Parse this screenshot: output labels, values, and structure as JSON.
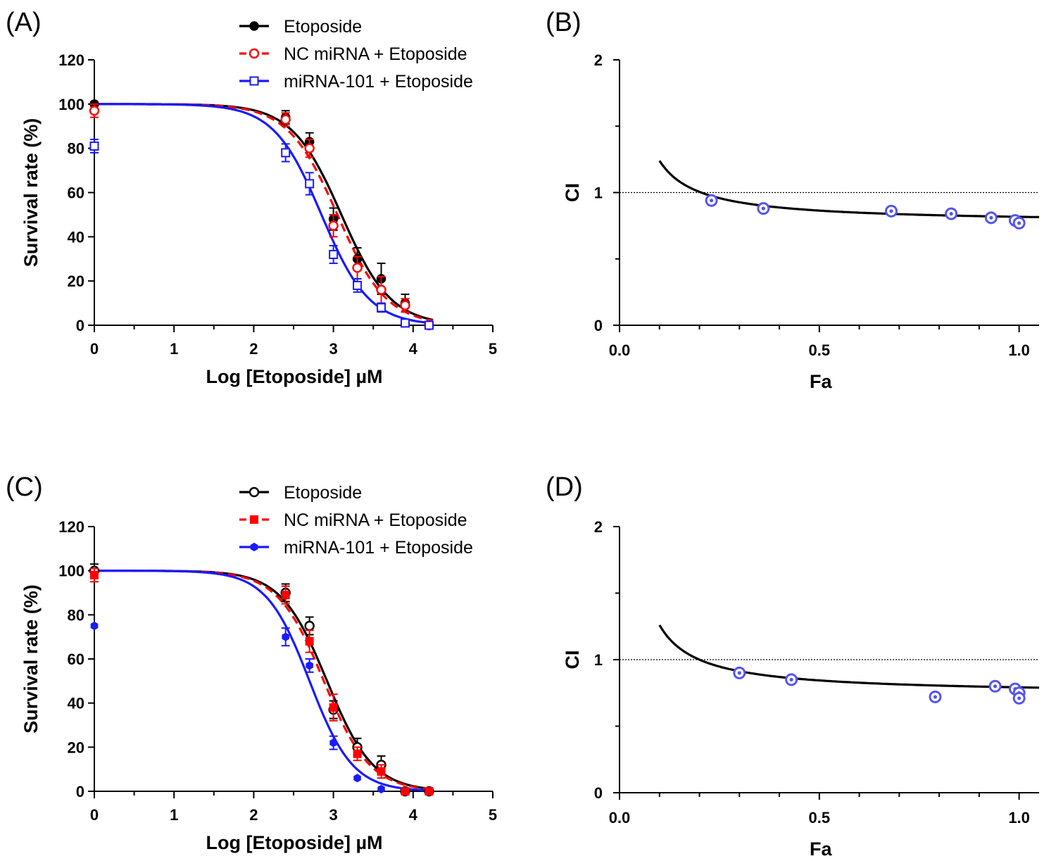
{
  "colors": {
    "black": "#000000",
    "red": "#ff0000",
    "blue": "#1a1aff",
    "ci_marker": "#5555ee"
  },
  "chart_data": [
    {
      "panel": "(A)",
      "type": "line",
      "xlabel": "Log [Etoposide] µM",
      "ylabel": "Survival rate (%)",
      "xlim": [
        0,
        5
      ],
      "ylim": [
        0,
        120
      ],
      "xticks": [
        "0",
        "1",
        "2",
        "3",
        "4",
        "5"
      ],
      "yticks": [
        "0",
        "20",
        "40",
        "60",
        "80",
        "100",
        "120"
      ],
      "legend_position": "top-center",
      "series": [
        {
          "name": "Etoposide",
          "color": "#000000",
          "dash": "solid",
          "marker": "filled-circle",
          "x": [
            0,
            2.4,
            2.7,
            3.0,
            3.3,
            3.6,
            3.9,
            4.2
          ],
          "y": [
            100,
            94,
            83,
            48,
            30,
            21,
            10,
            0
          ],
          "err": [
            0,
            3,
            4,
            5,
            5,
            7,
            4,
            0
          ],
          "fit": {
            "logIC50": 3.1,
            "hill": 1.4
          }
        },
        {
          "name": "NC miRNA + Etoposide",
          "color": "#ff0000",
          "dash": "dashed",
          "marker": "open-circle",
          "x": [
            0,
            2.4,
            2.7,
            3.0,
            3.3,
            3.6,
            3.9,
            4.2
          ],
          "y": [
            97,
            93,
            80,
            45,
            26,
            16,
            9,
            0
          ],
          "err": [
            3,
            3,
            4,
            5,
            5,
            6,
            3,
            0
          ],
          "fit": {
            "logIC50": 3.05,
            "hill": 1.4
          }
        },
        {
          "name": "miRNA-101 + Etoposide",
          "color": "#1a1aff",
          "dash": "solid",
          "marker": "open-square",
          "x": [
            0,
            2.4,
            2.7,
            3.0,
            3.3,
            3.6,
            3.9,
            4.2
          ],
          "y": [
            81,
            78,
            64,
            32,
            18,
            8,
            1,
            0
          ],
          "err": [
            3,
            4,
            5,
            4,
            3,
            2,
            1,
            0
          ],
          "fit": {
            "logIC50": 2.85,
            "hill": 1.45
          }
        }
      ]
    },
    {
      "panel": "(B)",
      "type": "scatter",
      "xlabel": "Fa",
      "ylabel": "CI",
      "xlim": [
        0,
        1.05
      ],
      "ylim": [
        0,
        2
      ],
      "xticks": [
        "0.0",
        "0.5",
        "1.0"
      ],
      "yticks": [
        "0",
        "1",
        "2"
      ],
      "reference_line_y": 1,
      "points": {
        "x": [
          0.23,
          0.36,
          0.68,
          0.83,
          0.93,
          0.99,
          1.0
        ],
        "y": [
          0.94,
          0.88,
          0.86,
          0.84,
          0.81,
          0.79,
          0.77
        ]
      },
      "curve": {
        "a": 0.77,
        "b": 0.047,
        "fa_from": 0.1,
        "fa_to": 1.05
      }
    },
    {
      "panel": "(C)",
      "type": "line",
      "xlabel": "Log [Etoposide] µM",
      "ylabel": "Survival rate (%)",
      "xlim": [
        0,
        5
      ],
      "ylim": [
        0,
        120
      ],
      "xticks": [
        "0",
        "1",
        "2",
        "3",
        "4",
        "5"
      ],
      "yticks": [
        "0",
        "20",
        "40",
        "60",
        "80",
        "100",
        "120"
      ],
      "legend_position": "top-center",
      "series": [
        {
          "name": "Etoposide",
          "color": "#000000",
          "dash": "solid",
          "marker": "open-circle",
          "x": [
            0,
            2.4,
            2.7,
            3.0,
            3.3,
            3.6,
            3.9,
            4.2
          ],
          "y": [
            100,
            90,
            75,
            37,
            20,
            12,
            0,
            0
          ],
          "err": [
            3,
            4,
            4,
            4,
            4,
            4,
            0,
            0
          ],
          "fit": {
            "logIC50": 2.92,
            "hill": 1.5
          }
        },
        {
          "name": "NC miRNA + Etoposide",
          "color": "#ff0000",
          "dash": "dashed",
          "marker": "filled-square",
          "x": [
            0,
            2.4,
            2.7,
            3.0,
            3.3,
            3.6,
            3.9,
            4.2
          ],
          "y": [
            98,
            89,
            68,
            38,
            17,
            9,
            0,
            0
          ],
          "err": [
            3,
            4,
            5,
            6,
            3,
            3,
            0,
            0
          ],
          "fit": {
            "logIC50": 2.88,
            "hill": 1.5
          }
        },
        {
          "name": "miRNA-101 + Etoposide",
          "color": "#1a1aff",
          "dash": "solid",
          "marker": "filled-hexagon",
          "x": [
            0,
            2.4,
            2.7,
            3.0,
            3.3,
            3.6
          ],
          "y": [
            75,
            70,
            57,
            22,
            6,
            1
          ],
          "err": [
            0,
            4,
            3,
            3,
            0,
            0
          ],
          "fit": {
            "logIC50": 2.7,
            "hill": 1.6
          }
        }
      ]
    },
    {
      "panel": "(D)",
      "type": "scatter",
      "xlabel": "Fa",
      "ylabel": "CI",
      "xlim": [
        0,
        1.05
      ],
      "ylim": [
        0,
        2
      ],
      "xticks": [
        "0.0",
        "0.5",
        "1.0"
      ],
      "yticks": [
        "0",
        "1",
        "2"
      ],
      "reference_line_y": 1,
      "points": {
        "x": [
          0.3,
          0.43,
          0.79,
          0.94,
          0.99,
          1.0,
          1.0
        ],
        "y": [
          0.9,
          0.85,
          0.72,
          0.8,
          0.78,
          0.75,
          0.71
        ]
      },
      "curve": {
        "a": 0.74,
        "b": 0.052,
        "fa_from": 0.1,
        "fa_to": 1.05
      }
    }
  ]
}
